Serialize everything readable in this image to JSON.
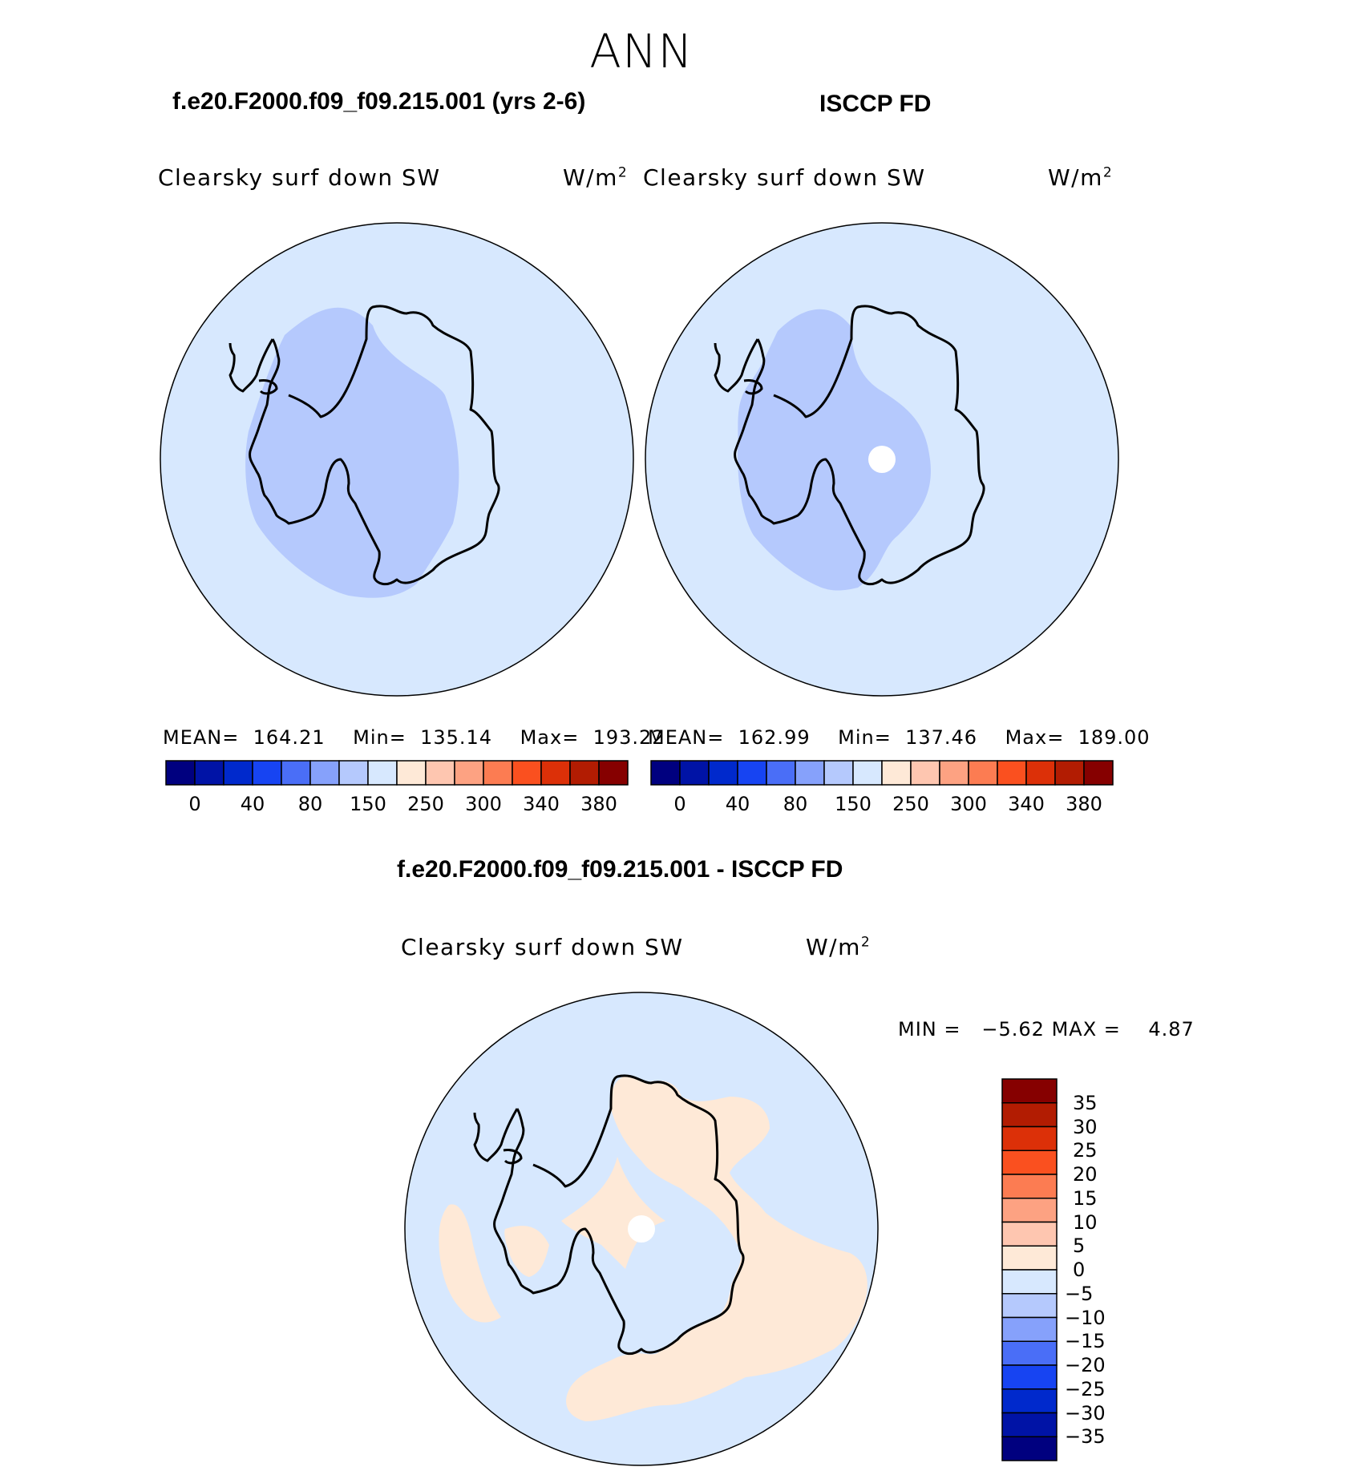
{
  "page": {
    "season": "ANN"
  },
  "panels": [
    {
      "id": "model",
      "case_title": "f.e20.F2000.f09_f09.215.001 (yrs 2-6)",
      "variable": "Clearsky surf down SW",
      "units": "W/m",
      "units_exp": "2",
      "stats": {
        "mean_label": "MEAN=",
        "mean": "164.21",
        "min_label": "Min=",
        "min": "135.14",
        "max_label": "Max=",
        "max": "193.22"
      }
    },
    {
      "id": "obs",
      "case_title": "ISCCP FD",
      "variable": "Clearsky surf down SW",
      "units": "W/m",
      "units_exp": "2",
      "stats": {
        "mean_label": "MEAN=",
        "mean": "162.99",
        "min_label": "Min=",
        "min": "137.46",
        "max_label": "Max=",
        "max": "189.00"
      }
    }
  ],
  "abs_colorbar": {
    "colors": [
      "#00007f",
      "#0013a6",
      "#0029cc",
      "#1744f2",
      "#4a6ef7",
      "#86a1fb",
      "#b5c9fd",
      "#d7e8fe",
      "#fee9d7",
      "#fec6b0",
      "#fda282",
      "#fc7c52",
      "#fa501f",
      "#dc3008",
      "#b21c02",
      "#860000"
    ],
    "tick_labels": [
      "0",
      "40",
      "80",
      "150",
      "250",
      "300",
      "340",
      "380"
    ]
  },
  "difference": {
    "title": "f.e20.F2000.f09_f09.215.001 - ISCCP FD",
    "variable": "Clearsky surf down SW",
    "units": "W/m",
    "units_exp": "2",
    "min_label": "MIN =",
    "min": "−5.62",
    "max_label": "MAX =",
    "max": "4.87"
  },
  "diff_colorbar": {
    "colors": [
      "#860000",
      "#b21c02",
      "#dc3008",
      "#fa501f",
      "#fc7c52",
      "#fda282",
      "#fec6b0",
      "#fee9d7",
      "#d7e8fe",
      "#b5c9fd",
      "#86a1fb",
      "#4a6ef7",
      "#1744f2",
      "#0029cc",
      "#0013a6",
      "#00007f"
    ],
    "tick_labels": [
      "35",
      "30",
      "25",
      "20",
      "15",
      "10",
      "5",
      "0",
      "−5",
      "−10",
      "−15",
      "−20",
      "−25",
      "−30",
      "−35"
    ]
  },
  "map_colors": {
    "ocean_fill": "#d7e8fe",
    "low_fill": "#b5c9fd",
    "positive_fill": "#fee9d7",
    "coast": "#000000"
  }
}
